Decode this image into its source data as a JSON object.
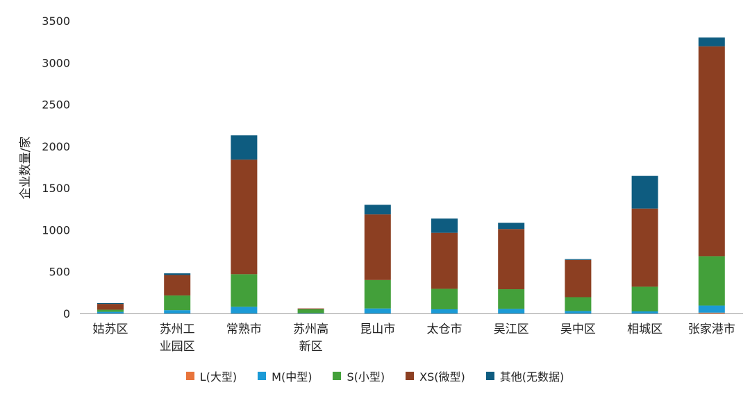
{
  "chart_data": {
    "type": "bar",
    "stacked": true,
    "ylabel": "企业数量/家",
    "ylim": [
      0,
      3500
    ],
    "yticks": [
      0,
      500,
      1000,
      1500,
      2000,
      2500,
      3000,
      3500
    ],
    "grid": false,
    "legend_position": "bottom",
    "categories": [
      [
        "姑苏区"
      ],
      [
        "苏州工",
        "业园区"
      ],
      [
        "常熟市"
      ],
      [
        "苏州高",
        "新区"
      ],
      [
        "昆山市"
      ],
      [
        "太仓市"
      ],
      [
        "吴江区"
      ],
      [
        "吴中区"
      ],
      [
        "相城区"
      ],
      [
        "张家港市"
      ]
    ],
    "series": [
      {
        "name": "L(大型)",
        "color": "#E8743B",
        "values": [
          0,
          0,
          0,
          0,
          0,
          0,
          0,
          0,
          0,
          10
        ]
      },
      {
        "name": "M(中型)",
        "color": "#1B9AD6",
        "values": [
          20,
          40,
          80,
          5,
          60,
          50,
          55,
          30,
          25,
          85
        ]
      },
      {
        "name": "S(小型)",
        "color": "#43A03A",
        "values": [
          25,
          175,
          390,
          45,
          340,
          245,
          235,
          165,
          295,
          590
        ]
      },
      {
        "name": "XS(微型)",
        "color": "#8C3F22",
        "values": [
          70,
          245,
          1370,
          10,
          785,
          670,
          720,
          445,
          935,
          2510
        ]
      },
      {
        "name": "其他(无数据)",
        "color": "#0E5C80",
        "values": [
          10,
          20,
          290,
          0,
          115,
          170,
          75,
          10,
          390,
          105
        ]
      }
    ]
  }
}
